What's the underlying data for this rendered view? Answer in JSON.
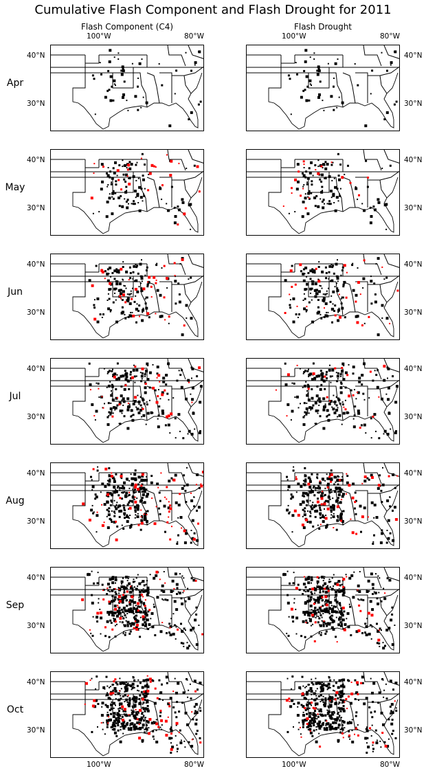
{
  "title": "Cumulative Flash Component and Flash Drought for 2011",
  "columns": [
    {
      "id": "c4",
      "title": "Flash Component (C4)"
    },
    {
      "id": "fd",
      "title": "Flash Drought"
    }
  ],
  "rows": [
    {
      "month": "Apr",
      "red": 0.0,
      "black": 0.12
    },
    {
      "month": "May",
      "red": 0.1,
      "black": 0.22
    },
    {
      "month": "Jun",
      "red": 0.14,
      "black": 0.32
    },
    {
      "month": "Jul",
      "red": 0.12,
      "black": 0.42
    },
    {
      "month": "Aug",
      "red": 0.22,
      "black": 0.55
    },
    {
      "month": "Sep",
      "red": 0.18,
      "black": 0.68
    },
    {
      "month": "Oct",
      "red": 0.2,
      "black": 0.8
    }
  ],
  "axes": {
    "lon_ticks": [
      "100°W",
      "80°W"
    ],
    "lat_ticks": [
      "40°N",
      "30°N"
    ]
  },
  "colors": {
    "drought_black": "#000000",
    "flash_red": "#ff0000",
    "border": "#000000"
  }
}
